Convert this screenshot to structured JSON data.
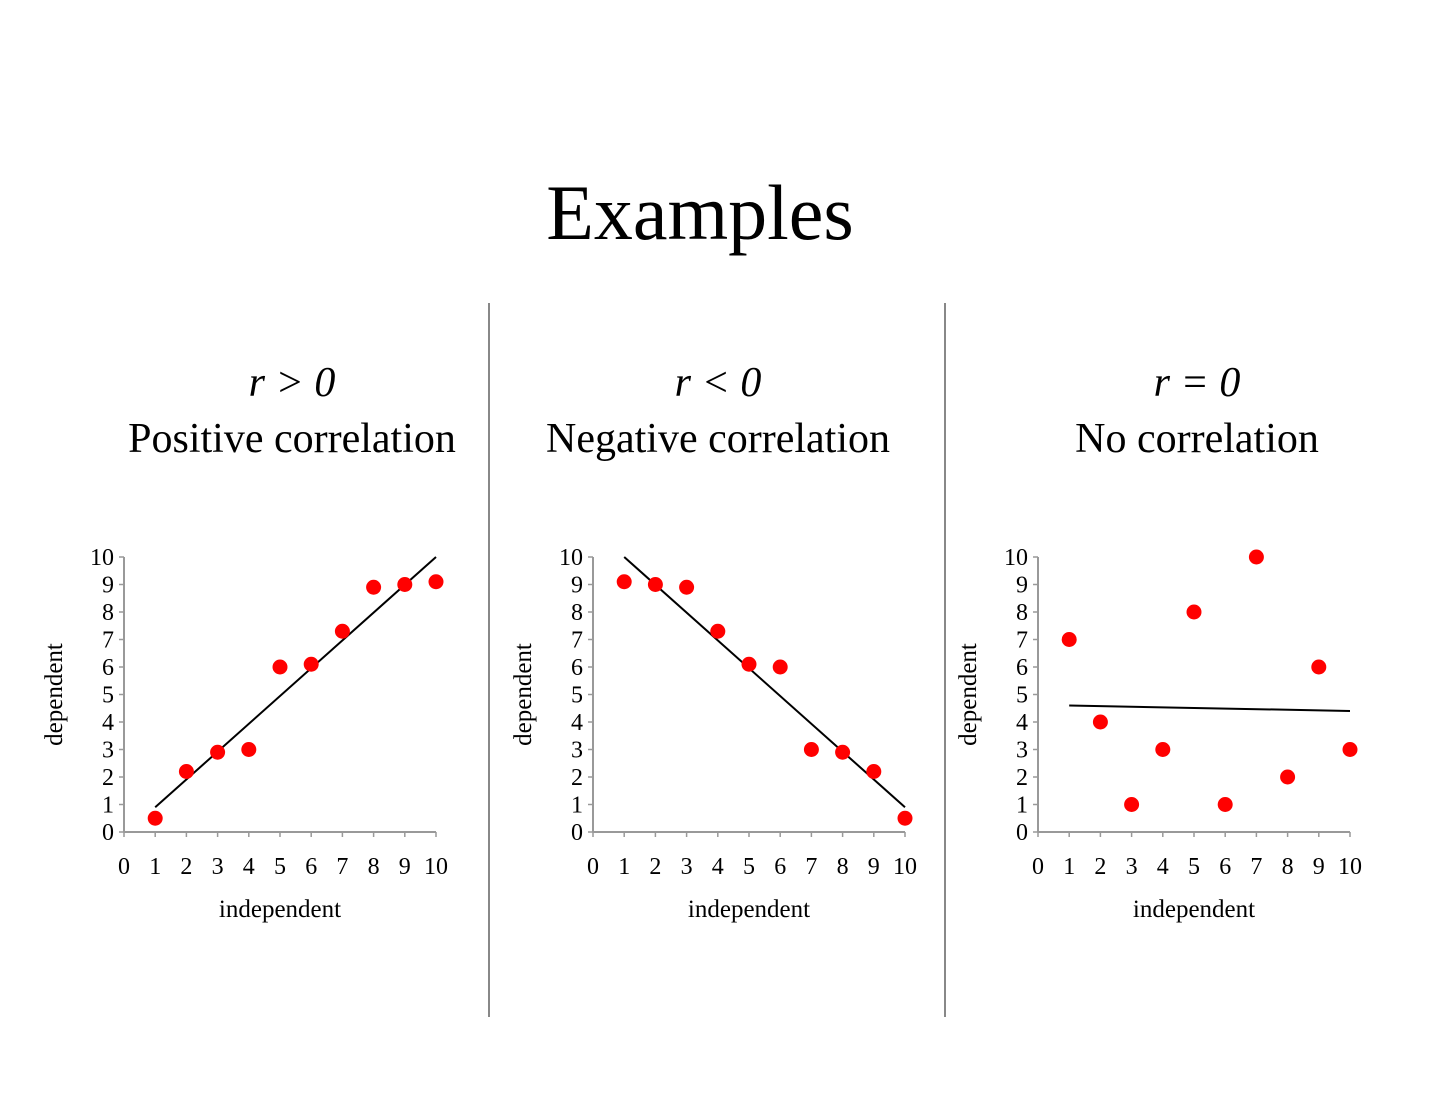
{
  "title": "Examples",
  "colors": {
    "points": "#ff0000",
    "trendline": "#000000",
    "divider": "#888888"
  },
  "chart_data": [
    {
      "type": "scatter",
      "relation": "r > 0",
      "title": "Positive correlation",
      "xlabel": "independent",
      "ylabel": "dependent",
      "xlim": [
        0,
        10
      ],
      "ylim": [
        0,
        10
      ],
      "xticks": [
        "0",
        "1",
        "2",
        "3",
        "4",
        "5",
        "6",
        "7",
        "8",
        "9",
        "10"
      ],
      "yticks": [
        "0",
        "1",
        "2",
        "3",
        "4",
        "5",
        "6",
        "7",
        "8",
        "9",
        "10"
      ],
      "grid": false,
      "x": [
        1,
        2,
        3,
        4,
        5,
        6,
        7,
        8,
        9,
        10
      ],
      "y": [
        0.5,
        2.2,
        2.9,
        3.0,
        6.0,
        6.1,
        7.3,
        8.9,
        9.0,
        9.1
      ],
      "trendline": {
        "x": [
          1,
          10
        ],
        "y": [
          0.9,
          10
        ]
      }
    },
    {
      "type": "scatter",
      "relation": "r < 0",
      "title": "Negative correlation",
      "xlabel": "independent",
      "ylabel": "dependent",
      "xlim": [
        0,
        10
      ],
      "ylim": [
        0,
        10
      ],
      "xticks": [
        "0",
        "1",
        "2",
        "3",
        "4",
        "5",
        "6",
        "7",
        "8",
        "9",
        "10"
      ],
      "yticks": [
        "0",
        "1",
        "2",
        "3",
        "4",
        "5",
        "6",
        "7",
        "8",
        "9",
        "10"
      ],
      "grid": false,
      "x": [
        1,
        2,
        3,
        4,
        5,
        6,
        7,
        8,
        9,
        10
      ],
      "y": [
        9.1,
        9.0,
        8.9,
        7.3,
        6.1,
        6.0,
        3.0,
        2.9,
        2.2,
        0.5
      ],
      "trendline": {
        "x": [
          1,
          10
        ],
        "y": [
          10,
          0.9
        ]
      }
    },
    {
      "type": "scatter",
      "relation": "r = 0",
      "title": "No correlation",
      "xlabel": "independent",
      "ylabel": "dependent",
      "xlim": [
        0,
        10
      ],
      "ylim": [
        0,
        10
      ],
      "xticks": [
        "0",
        "1",
        "2",
        "3",
        "4",
        "5",
        "6",
        "7",
        "8",
        "9",
        "10"
      ],
      "yticks": [
        "0",
        "1",
        "2",
        "3",
        "4",
        "5",
        "6",
        "7",
        "8",
        "9",
        "10"
      ],
      "grid": false,
      "x": [
        1,
        2,
        3,
        4,
        5,
        6,
        7,
        8,
        9,
        10
      ],
      "y": [
        7,
        4,
        1,
        3,
        8,
        1,
        10,
        2,
        6,
        3
      ],
      "trendline": {
        "x": [
          1,
          10
        ],
        "y": [
          4.6,
          4.4
        ]
      }
    }
  ]
}
